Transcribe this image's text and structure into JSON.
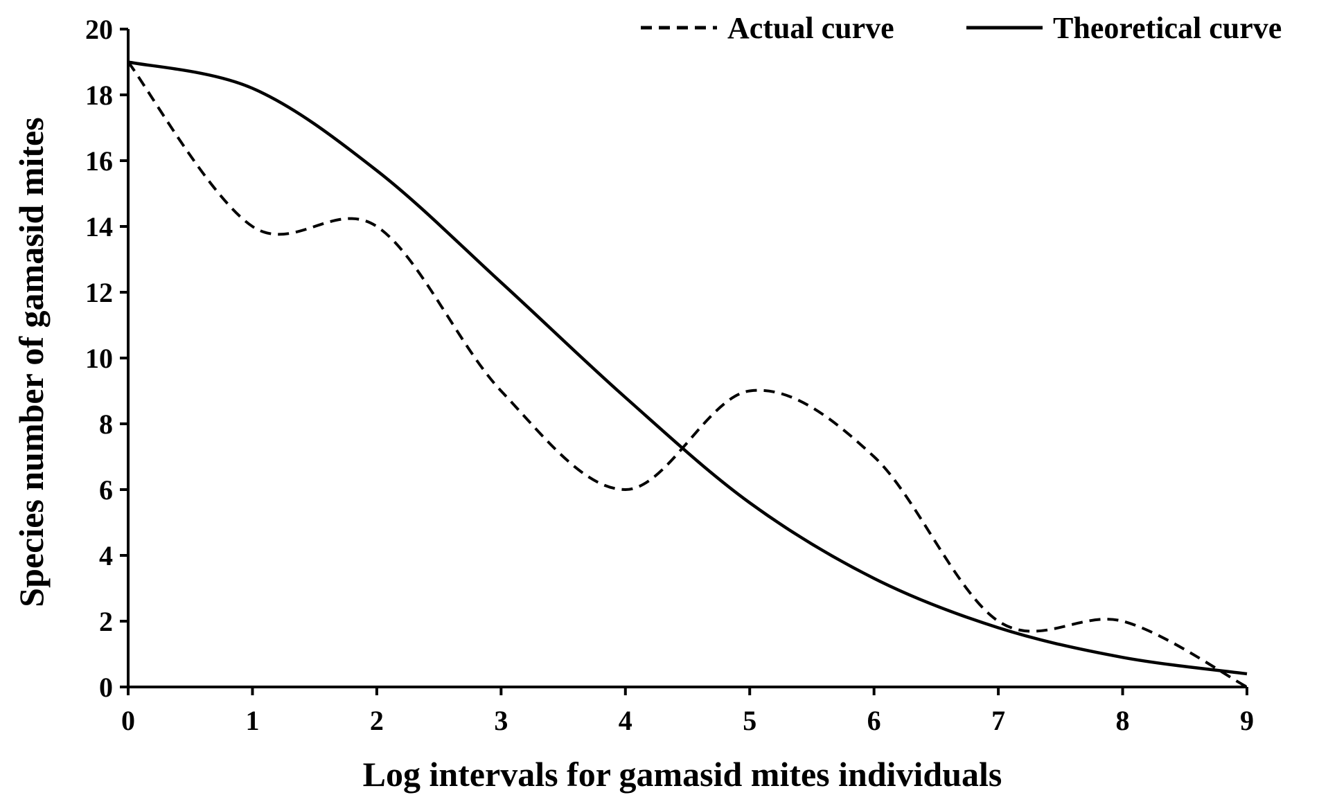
{
  "chart_data": {
    "type": "line",
    "title": "",
    "xlabel": "Log intervals for gamasid mites individuals",
    "ylabel": "Species number of gamasid mites",
    "xlim": [
      0,
      9
    ],
    "ylim": [
      0,
      20
    ],
    "x_ticks": [
      0,
      1,
      2,
      3,
      4,
      5,
      6,
      7,
      8,
      9
    ],
    "y_ticks": [
      0,
      2,
      4,
      6,
      8,
      10,
      12,
      14,
      16,
      18,
      20
    ],
    "grid": false,
    "legend_position": "top-right",
    "x": [
      0,
      1,
      2,
      3,
      4,
      5,
      6,
      7,
      8,
      9
    ],
    "series": [
      {
        "name": "Actual curve",
        "style": "dashed",
        "values": [
          19,
          14,
          14,
          9,
          6,
          9,
          7,
          2,
          2,
          0
        ]
      },
      {
        "name": "Theoretical curve",
        "style": "solid",
        "values": [
          19,
          18.2,
          15.7,
          12.3,
          8.8,
          5.6,
          3.3,
          1.8,
          0.9,
          0.4
        ]
      }
    ]
  }
}
